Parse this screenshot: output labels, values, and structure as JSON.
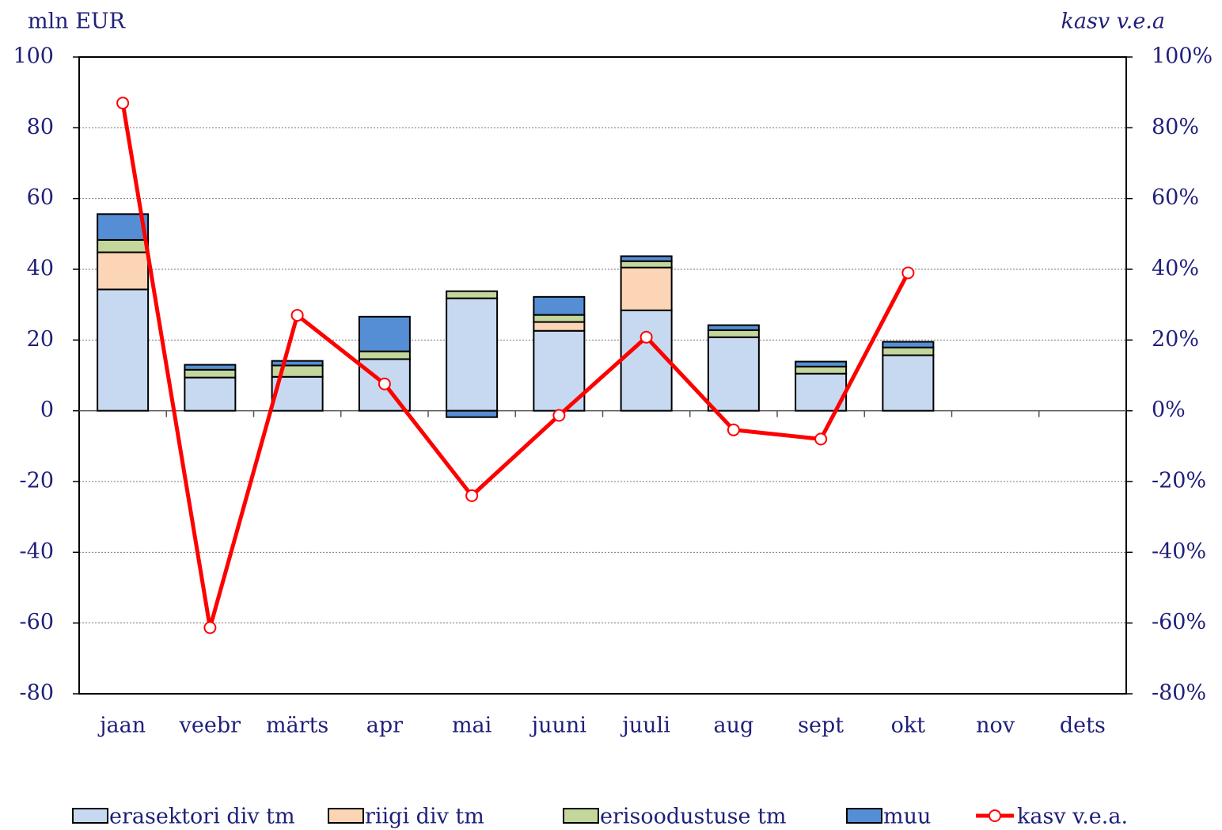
{
  "chart_data": {
    "type": "bar",
    "stacked": true,
    "y_label": "mln EUR",
    "y2_label": "kasv v.e.a",
    "categories": [
      "jaan",
      "veebr",
      "märts",
      "apr",
      "mai",
      "juuni",
      "juuli",
      "aug",
      "sept",
      "okt",
      "nov",
      "dets"
    ],
    "series": [
      {
        "name": "erasektori div tm",
        "color": "#c6d9f1",
        "values": [
          34.3,
          9.4,
          9.6,
          14.6,
          31.8,
          22.6,
          28.4,
          20.8,
          10.5,
          15.7,
          null,
          null
        ]
      },
      {
        "name": "riigi div tm",
        "color": "#fbd5b5",
        "values": [
          10.5,
          0,
          0,
          0,
          0,
          2.5,
          12.1,
          0,
          0,
          0,
          null,
          null
        ]
      },
      {
        "name": "erisoodustuse tm",
        "color": "#c3d69b",
        "values": [
          3.5,
          2.2,
          3.2,
          2.2,
          2,
          2,
          1.8,
          2,
          2,
          2.2,
          null,
          null
        ]
      },
      {
        "name": "muu",
        "color": "#558ed5",
        "values": [
          7.3,
          1.4,
          1.3,
          9.8,
          -1.8,
          5.1,
          1.4,
          1.4,
          1.4,
          1.6,
          null,
          null
        ]
      },
      {
        "name": "kasv v.e.a.",
        "color": "#ff0000",
        "type": "line",
        "axis": "y2",
        "values": [
          87,
          -61.3,
          27,
          7.6,
          -24,
          -1.3,
          20.8,
          -5.4,
          -8,
          39,
          null,
          null
        ]
      }
    ],
    "ylim": [
      -80,
      100
    ],
    "yticks": [
      -80,
      -60,
      -40,
      -20,
      0,
      20,
      40,
      60,
      80,
      100
    ],
    "y2lim": [
      -80,
      100
    ],
    "y2ticks": [
      {
        "value": -80,
        "label": "-80%"
      },
      {
        "value": -60,
        "label": "-60%"
      },
      {
        "value": -40,
        "label": "-40%"
      },
      {
        "value": -20,
        "label": "-20%"
      },
      {
        "value": 0,
        "label": "0%"
      },
      {
        "value": 20,
        "label": "20%"
      },
      {
        "value": 40,
        "label": "40%"
      },
      {
        "value": 60,
        "label": "60%"
      },
      {
        "value": 80,
        "label": "80%"
      },
      {
        "value": 100,
        "label": "100%"
      }
    ],
    "grid": true,
    "legend": "bottom"
  }
}
